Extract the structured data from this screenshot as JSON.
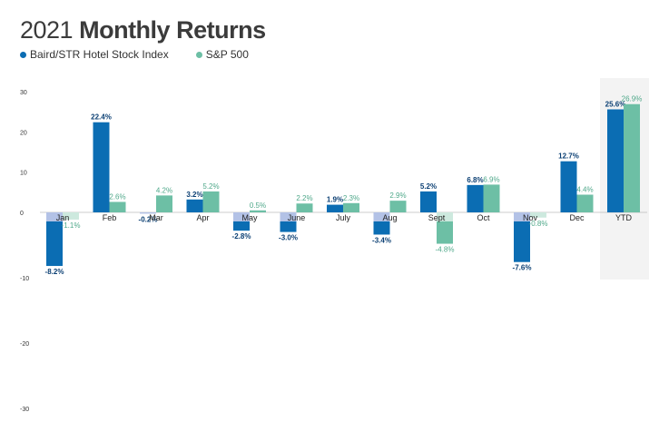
{
  "title_year": "2021",
  "title_rest": "Monthly Returns",
  "colors": {
    "series1": "#0b6db3",
    "series2": "#6dbfa5",
    "series1_light": "#b3c2e6",
    "series2_light": "#cde9de",
    "highlight": "#f3f3f3"
  },
  "chart_data": {
    "type": "bar",
    "title": "2021 Monthly Returns",
    "categories": [
      "Jan",
      "Feb",
      "Mar",
      "Apr",
      "May",
      "June",
      "July",
      "Aug",
      "Sept",
      "Oct",
      "Nov",
      "Dec",
      "YTD"
    ],
    "series": [
      {
        "name": "Baird/STR Hotel Stock Index",
        "values": [
          -8.2,
          22.4,
          -0.2,
          3.2,
          -2.8,
          -3.0,
          1.9,
          -3.4,
          5.2,
          6.8,
          -7.6,
          12.7,
          25.6
        ],
        "labels": [
          "-8.2%",
          "22.4%",
          "-0.2%",
          "3.2%",
          "-2.8%",
          "-3.0%",
          "1.9%",
          "-3.4%",
          "5.2%",
          "6.8%",
          "-7.6%",
          "12.7%",
          "25.6%"
        ]
      },
      {
        "name": "S&P 500",
        "values": [
          -1.1,
          2.6,
          4.2,
          5.2,
          0.5,
          2.2,
          2.3,
          2.9,
          -4.8,
          6.9,
          -0.8,
          4.4,
          26.9
        ],
        "labels": [
          "-1.1%",
          "2.6%",
          "4.2%",
          "5.2%",
          "0.5%",
          "2.2%",
          "2.3%",
          "2.9%",
          "-4.8%",
          "6.9%",
          "-0.8%",
          "4.4%",
          "26.9%"
        ]
      }
    ],
    "yticks": [
      30,
      20,
      10,
      0,
      -10,
      -20,
      -30
    ],
    "ylim": [
      -30,
      30
    ],
    "grid": false,
    "legend": "top-left",
    "highlight_category": "YTD"
  }
}
